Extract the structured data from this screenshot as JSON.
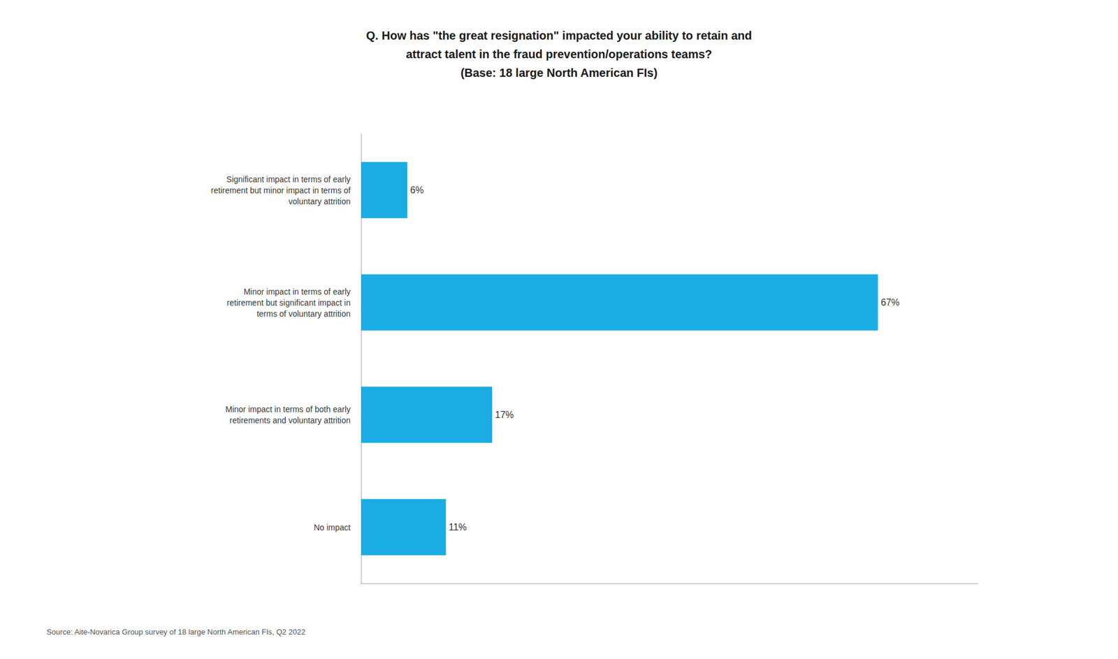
{
  "chart_data": {
    "type": "bar",
    "orientation": "horizontal",
    "title": "Q. How has \"the great resignation\" impacted your ability to retain and\nattract talent in the fraud prevention/operations teams?\n(Base: 18 large North American FIs)",
    "categories": [
      "Significant impact in terms of early\nretirement but minor impact in terms of\nvoluntary attrition",
      "Minor impact in terms of early\nretirement but significant impact in\nterms of voluntary attrition",
      "Minor impact in terms of both early\nretirements and voluntary attrition",
      "No impact"
    ],
    "values": [
      6,
      67,
      17,
      11
    ],
    "value_labels": [
      "6%",
      "67%",
      "17%",
      "11%"
    ],
    "data_labels": true,
    "color": "#1AACE3",
    "xlim": [
      0,
      80
    ],
    "tick_labels": "y",
    "grid": false,
    "annotations": [
      "Source: Aite-Novarica Group survey of 18 large North American FIs, Q2 2022"
    ]
  }
}
